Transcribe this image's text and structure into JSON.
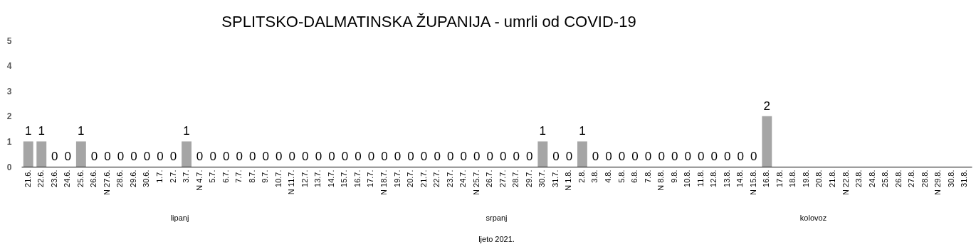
{
  "chart_data": {
    "type": "bar",
    "title": "SPLITSKO-DALMATINSKA ŽUPANIJA - umrli od COVID-19",
    "categories": [
      "21.6.",
      "22.6.",
      "23.6.",
      "24.6.",
      "25.6.",
      "26.6.",
      "N 27.6.",
      "28.6.",
      "29.6.",
      "30.6.",
      "1.7.",
      "2.7.",
      "3.7.",
      "N 4.7.",
      "5.7.",
      "6.7.",
      "7.7.",
      "8.7.",
      "9.7.",
      "10.7.",
      "N 11.7.",
      "12.7.",
      "13.7.",
      "14.7.",
      "15.7.",
      "16.7.",
      "17.7.",
      "N 18.7.",
      "19.7.",
      "20.7.",
      "21.7.",
      "22.7.",
      "23.7.",
      "24.7.",
      "N 25.7.",
      "26.7.",
      "27.7.",
      "28.7.",
      "29.7.",
      "30.7.",
      "31.7.",
      "N 1.8.",
      "2.8.",
      "3.8.",
      "4.8.",
      "5.8.",
      "6.8.",
      "7.8.",
      "N 8.8.",
      "9.8.",
      "10.8.",
      "11.8.",
      "12.8.",
      "13.8.",
      "14.8.",
      "N 15.8.",
      "16.8.",
      "17.8.",
      "18.8.",
      "19.8.",
      "20.8.",
      "21.8.",
      "N 22.8.",
      "23.8.",
      "24.8.",
      "25.8.",
      "26.8.",
      "27.8.",
      "28.8.",
      "N 29.8.",
      "30.8.",
      "31.8."
    ],
    "values": [
      1,
      1,
      0,
      0,
      1,
      0,
      0,
      0,
      0,
      0,
      0,
      0,
      1,
      0,
      0,
      0,
      0,
      0,
      0,
      0,
      0,
      0,
      0,
      0,
      0,
      0,
      0,
      0,
      0,
      0,
      0,
      0,
      0,
      0,
      0,
      0,
      0,
      0,
      0,
      1,
      0,
      0,
      1,
      0,
      0,
      0,
      0,
      0,
      0,
      0,
      0,
      0,
      0,
      0,
      0,
      0,
      2,
      null,
      null,
      null,
      null,
      null,
      null,
      null,
      null,
      null,
      null,
      null,
      null,
      null,
      null,
      null
    ],
    "color": "#a5a5a5",
    "ylim": [
      0,
      5
    ],
    "yticks": [
      0,
      1,
      2,
      3,
      4,
      5
    ],
    "data_labels": true,
    "grid": false,
    "annotations": [
      "lipanj",
      "srpanj",
      "kolovoz",
      "ljeto 2021."
    ]
  }
}
